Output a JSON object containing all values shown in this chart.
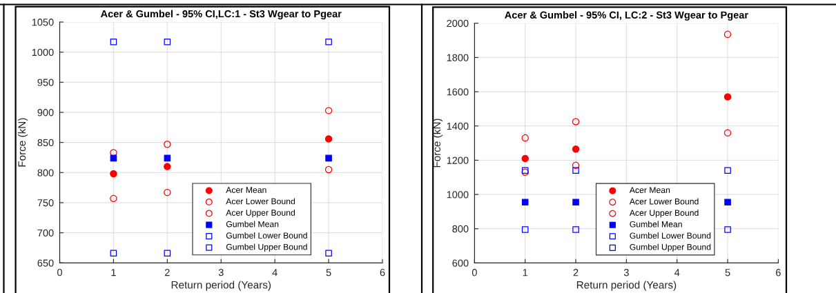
{
  "chart_data": [
    {
      "type": "scatter",
      "title": "Acer & Gumbel - 95% CI,LC:1 - St3 Wgear to Pgear",
      "xlabel": "Return period (Years)",
      "ylabel": "Force (kN)",
      "x": [
        1,
        2,
        5
      ],
      "xlim": [
        0,
        6
      ],
      "xticks": [
        0,
        1,
        2,
        3,
        4,
        5,
        6
      ],
      "ylim": [
        650,
        1050
      ],
      "yticks": [
        650,
        700,
        750,
        800,
        850,
        900,
        950,
        1000,
        1050
      ],
      "grid": true,
      "legend": "bottom",
      "series": [
        {
          "name": "Acer Mean",
          "color": "#ff0000",
          "marker": "circle",
          "values": [
            798,
            810,
            856
          ]
        },
        {
          "name": "Acer Lower Bound",
          "color": "#ff0000",
          "marker": "circle-open",
          "values": [
            757,
            767,
            805
          ]
        },
        {
          "name": "Acer Upper Bound",
          "color": "#ff0000",
          "marker": "circle-open",
          "values": [
            833,
            847,
            903
          ]
        },
        {
          "name": "Gumbel Mean",
          "color": "#0000ff",
          "marker": "square",
          "values": [
            824,
            824,
            824
          ]
        },
        {
          "name": "Gumbel Lower Bound",
          "color": "#0000ff",
          "marker": "square-open",
          "values": [
            666,
            666,
            666
          ]
        },
        {
          "name": "Gumbel Upper Bound",
          "color": "#0000ff",
          "marker": "square-open",
          "values": [
            1017,
            1017,
            1017
          ]
        }
      ]
    },
    {
      "type": "scatter",
      "title": "Acer & Gumbel - 95% CI, LC:2 - St3 Wgear to Pgear",
      "xlabel": "Return period (Years)",
      "ylabel": "Force (kN)",
      "x": [
        1,
        2,
        5
      ],
      "xlim": [
        0,
        6
      ],
      "xticks": [
        0,
        1,
        2,
        3,
        4,
        5,
        6
      ],
      "ylim": [
        600,
        2000
      ],
      "yticks": [
        600,
        800,
        1000,
        1200,
        1400,
        1600,
        1800,
        2000
      ],
      "grid": true,
      "legend": "bottom",
      "series": [
        {
          "name": "Acer Mean",
          "color": "#ff0000",
          "marker": "circle",
          "values": [
            1210,
            1265,
            1570
          ]
        },
        {
          "name": "Acer Lower Bound",
          "color": "#ff0000",
          "marker": "circle-open",
          "values": [
            1130,
            1170,
            1360
          ]
        },
        {
          "name": "Acer Upper Bound",
          "color": "#ff0000",
          "marker": "circle-open",
          "values": [
            1330,
            1425,
            1935
          ]
        },
        {
          "name": "Gumbel Mean",
          "color": "#0000ff",
          "marker": "square",
          "values": [
            955,
            955,
            955
          ]
        },
        {
          "name": "Gumbel Lower Bound",
          "color": "#0000ff",
          "marker": "square-open",
          "values": [
            795,
            795,
            795
          ]
        },
        {
          "name": "Gumbel Upper Bound",
          "color": "#0000ff",
          "marker": "square-open",
          "values": [
            1140,
            1140,
            1140
          ]
        }
      ]
    }
  ]
}
